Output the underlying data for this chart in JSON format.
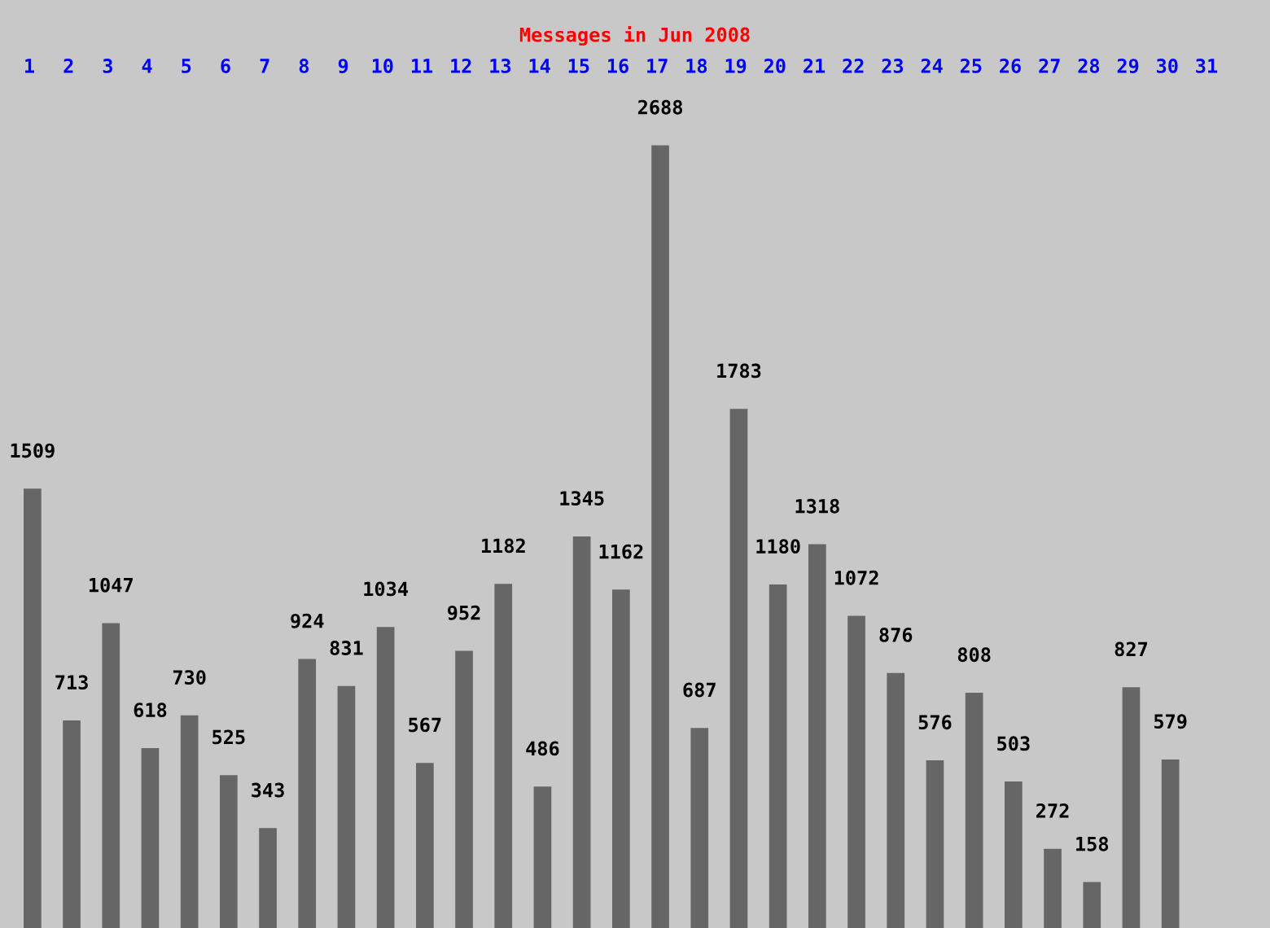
{
  "chart_data": {
    "type": "bar",
    "title": "Messages in Jun 2008",
    "categories": [
      "1",
      "2",
      "3",
      "4",
      "5",
      "6",
      "7",
      "8",
      "9",
      "10",
      "11",
      "12",
      "13",
      "14",
      "15",
      "16",
      "17",
      "18",
      "19",
      "20",
      "21",
      "22",
      "23",
      "24",
      "25",
      "26",
      "27",
      "28",
      "29",
      "30",
      "31"
    ],
    "values": [
      1509,
      713,
      1047,
      618,
      730,
      525,
      343,
      924,
      831,
      1034,
      567,
      952,
      1182,
      486,
      1345,
      1162,
      2688,
      687,
      1783,
      1180,
      1318,
      1072,
      876,
      576,
      808,
      503,
      272,
      158,
      827,
      579,
      null
    ],
    "color": "#666666",
    "relative": false,
    "data_labels": true,
    "grid": false,
    "legend": false
  }
}
